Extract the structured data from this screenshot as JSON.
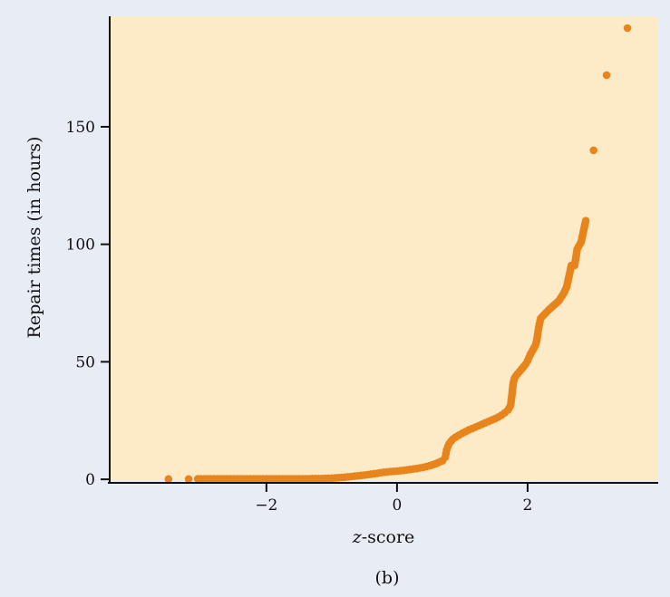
{
  "caption": "(b)",
  "chart_data": {
    "type": "scatter",
    "xlabel_italic": "z",
    "xlabel_rest": "-score",
    "ylabel": "Repair times (in hours)",
    "xlim": [
      -4.4,
      4.0
    ],
    "ylim": [
      -1.5,
      197
    ],
    "xticks": [
      -2,
      0,
      2
    ],
    "xtick_labels": [
      "−2",
      "0",
      "2"
    ],
    "yticks": [
      0,
      50,
      100,
      150
    ],
    "ytick_labels": [
      "0",
      "50",
      "100",
      "150"
    ],
    "grid": false,
    "colors": {
      "plot_bg": "#fdebc8",
      "point": "#e8841c",
      "axis": "#111111"
    },
    "series": [
      {
        "x": [
          -3.5,
          -3.19,
          -3.05,
          -3.0,
          -2.95,
          -2.9,
          -2.85,
          -2.8,
          -2.7,
          -2.6,
          -2.5,
          -2.4,
          -2.3,
          -2.2,
          -2.1,
          -2.0,
          -1.9,
          -1.8,
          -1.7,
          -1.6,
          -1.5,
          -1.4,
          -1.3,
          -1.2,
          -1.1,
          -1.0,
          -0.9,
          -0.8,
          -0.7,
          -0.6,
          -0.5,
          -0.4,
          -0.3,
          -0.2,
          -0.1,
          0.0,
          0.1,
          0.2,
          0.3,
          0.4,
          0.5,
          0.6,
          0.7,
          0.74,
          0.75,
          0.76,
          0.78,
          0.8,
          0.83,
          0.86,
          0.9,
          0.95,
          1.0,
          1.05,
          1.1,
          1.15,
          1.2,
          1.25,
          1.3,
          1.35,
          1.4,
          1.45,
          1.5,
          1.55,
          1.6,
          1.65,
          1.7,
          1.74,
          1.76,
          1.78,
          1.8,
          1.82,
          1.85,
          1.88,
          1.91,
          1.94,
          1.97,
          2.0,
          2.04,
          2.08,
          2.12,
          2.14,
          2.16,
          2.18,
          2.2,
          2.25,
          2.32,
          2.4,
          2.48,
          2.55,
          2.6,
          2.67,
          2.72,
          2.76,
          2.82,
          2.89,
          3.01,
          3.21,
          3.53
        ],
        "y": [
          0.1,
          0.1,
          0.2,
          0.2,
          0.2,
          0.2,
          0.2,
          0.2,
          0.2,
          0.2,
          0.2,
          0.2,
          0.2,
          0.2,
          0.2,
          0.2,
          0.2,
          0.2,
          0.2,
          0.2,
          0.2,
          0.2,
          0.3,
          0.3,
          0.4,
          0.5,
          0.7,
          0.9,
          1.2,
          1.5,
          1.8,
          2.2,
          2.6,
          3.0,
          3.3,
          3.5,
          3.8,
          4.2,
          4.6,
          5.1,
          5.8,
          6.7,
          8.0,
          9.5,
          11.0,
          12.5,
          14.0,
          15.2,
          16.3,
          17.2,
          18.0,
          18.8,
          19.6,
          20.3,
          21.0,
          21.6,
          22.2,
          22.8,
          23.4,
          24.0,
          24.6,
          25.2,
          25.8,
          26.5,
          27.3,
          28.3,
          29.5,
          31.5,
          36.0,
          41.0,
          43.0,
          44.0,
          45.0,
          46.0,
          47.0,
          48.0,
          49.0,
          50.5,
          53.0,
          55.0,
          57.0,
          59.0,
          63.0,
          66.0,
          68.5,
          70.0,
          72.0,
          74.0,
          76.0,
          79.0,
          82.0,
          91.0,
          91.0,
          98.0,
          101.0,
          110.0,
          140.0,
          172.0,
          192.0
        ]
      }
    ]
  }
}
